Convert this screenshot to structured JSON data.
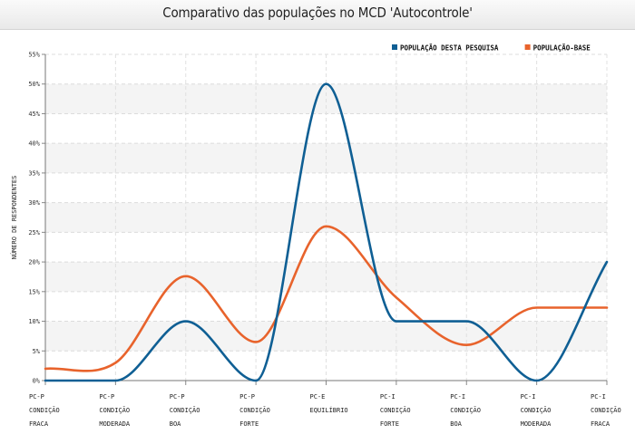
{
  "chart_data": {
    "type": "line",
    "title": "Comparativo das populações no MCD 'Autocontrole'",
    "ylabel": "NÚMERO DE RESPONDENTES",
    "xlabel": "",
    "ylim": [
      0,
      55
    ],
    "y_ticks": [
      "0%",
      "5%",
      "10%",
      "15%",
      "20%",
      "25%",
      "30%",
      "35%",
      "40%",
      "45%",
      "50%",
      "55%"
    ],
    "grid": true,
    "legend_position": "top-right",
    "categories": [
      [
        "PC-P",
        "CONDIÇÃO",
        "FRACA"
      ],
      [
        "PC-P",
        "CONDIÇÃO",
        "MODERADA"
      ],
      [
        "PC-P",
        "CONDIÇÃO",
        "BOA"
      ],
      [
        "PC-P",
        "CONDIÇÃO",
        "FORTE"
      ],
      [
        "PC-E",
        "EQUILÍBRIO"
      ],
      [
        "PC-I",
        "CONDIÇÃO",
        "FORTE"
      ],
      [
        "PC-I",
        "CONDIÇÃO",
        "BOA"
      ],
      [
        "PC-I",
        "CONDIÇÃO",
        "MODERADA"
      ],
      [
        "PC-I",
        "CONDIÇÃO",
        "FRACA"
      ]
    ],
    "series": [
      {
        "name": "POPULAÇÃO DESTA PESQUISA",
        "color": "#0f5f94",
        "values": [
          0,
          0,
          10,
          0,
          50,
          10,
          10,
          0,
          20
        ]
      },
      {
        "name": "POPULAÇÃO-BASE",
        "color": "#e8632c",
        "values": [
          2,
          3,
          17.6,
          6.5,
          26,
          14,
          6,
          12.3,
          12.3
        ]
      }
    ]
  }
}
